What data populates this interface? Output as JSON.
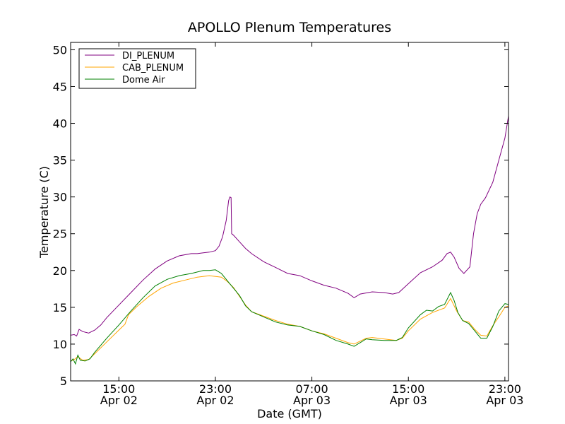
{
  "chart_data": {
    "type": "line",
    "title": "APOLLO Plenum Temperatures",
    "xlabel": "Date (GMT)",
    "ylabel": "Temperature (C)",
    "x_unit": "hours since Apr 02 11:00 GMT",
    "xlim": [
      0,
      36.3
    ],
    "ylim": [
      5,
      51
    ],
    "yticks": [
      5,
      10,
      15,
      20,
      25,
      30,
      35,
      40,
      45,
      50
    ],
    "xticks": [
      {
        "value": 4,
        "time": "15:00",
        "date": "Apr 02"
      },
      {
        "value": 12,
        "time": "23:00",
        "date": "Apr 02"
      },
      {
        "value": 20,
        "time": "07:00",
        "date": "Apr 03"
      },
      {
        "value": 28,
        "time": "15:00",
        "date": "Apr 03"
      },
      {
        "value": 36,
        "time": "23:00",
        "date": "Apr 03"
      }
    ],
    "grid": false,
    "legend_position": "top-left",
    "series": [
      {
        "name": "DI_PLENUM",
        "color": "#800080",
        "points": [
          [
            0,
            11.2
          ],
          [
            0.3,
            11.3
          ],
          [
            0.5,
            11.1
          ],
          [
            0.7,
            12
          ],
          [
            1,
            11.7
          ],
          [
            1.5,
            11.5
          ],
          [
            2,
            11.9
          ],
          [
            2.5,
            12.6
          ],
          [
            3,
            13.6
          ],
          [
            4,
            15.3
          ],
          [
            5,
            17
          ],
          [
            6,
            18.7
          ],
          [
            7,
            20.2
          ],
          [
            8,
            21.3
          ],
          [
            9,
            22
          ],
          [
            10,
            22.3
          ],
          [
            10.5,
            22.3
          ],
          [
            11,
            22.4
          ],
          [
            11.5,
            22.5
          ],
          [
            12,
            22.7
          ],
          [
            12.3,
            23.3
          ],
          [
            12.6,
            24.6
          ],
          [
            12.9,
            26.8
          ],
          [
            13.1,
            29.5
          ],
          [
            13.2,
            30
          ],
          [
            13.3,
            29.9
          ],
          [
            13.35,
            25
          ],
          [
            13.5,
            24.8
          ],
          [
            14,
            23.9
          ],
          [
            14.5,
            23
          ],
          [
            15,
            22.3
          ],
          [
            16,
            21.2
          ],
          [
            17,
            20.4
          ],
          [
            18,
            19.6
          ],
          [
            19,
            19.3
          ],
          [
            20,
            18.6
          ],
          [
            21,
            18
          ],
          [
            22,
            17.6
          ],
          [
            23,
            16.9
          ],
          [
            23.5,
            16.3
          ],
          [
            24,
            16.8
          ],
          [
            25,
            17.1
          ],
          [
            26,
            17
          ],
          [
            26.7,
            16.8
          ],
          [
            27.2,
            17
          ],
          [
            28,
            18.2
          ],
          [
            29,
            19.7
          ],
          [
            30,
            20.5
          ],
          [
            30.8,
            21.4
          ],
          [
            31.2,
            22.3
          ],
          [
            31.5,
            22.5
          ],
          [
            31.8,
            21.8
          ],
          [
            32.2,
            20.3
          ],
          [
            32.6,
            19.6
          ],
          [
            33.1,
            20.5
          ],
          [
            33.4,
            25
          ],
          [
            33.7,
            27.7
          ],
          [
            34,
            29
          ],
          [
            34.4,
            29.9
          ],
          [
            35,
            32
          ],
          [
            35.5,
            35
          ],
          [
            36,
            38
          ],
          [
            36.3,
            41
          ]
        ]
      },
      {
        "name": "CAB_PLENUM",
        "color": "#ffa500",
        "points": [
          [
            0,
            7.7
          ],
          [
            0.3,
            7.9
          ],
          [
            0.6,
            8.3
          ],
          [
            1,
            7.8
          ],
          [
            1.5,
            7.9
          ],
          [
            2,
            8.7
          ],
          [
            3,
            10.3
          ],
          [
            4,
            11.9
          ],
          [
            4.5,
            12.7
          ],
          [
            4.8,
            14
          ],
          [
            5.5,
            15.1
          ],
          [
            6.5,
            16.5
          ],
          [
            7.5,
            17.6
          ],
          [
            8.5,
            18.3
          ],
          [
            9.5,
            18.7
          ],
          [
            10.5,
            19.1
          ],
          [
            11.5,
            19.3
          ],
          [
            12.5,
            19.1
          ],
          [
            13,
            18.5
          ],
          [
            13.5,
            17.7
          ],
          [
            14,
            16.5
          ],
          [
            14.5,
            15.3
          ],
          [
            15,
            14.4
          ],
          [
            16,
            13.8
          ],
          [
            17,
            13.2
          ],
          [
            18,
            12.7
          ],
          [
            19,
            12.4
          ],
          [
            20,
            11.8
          ],
          [
            21,
            11.4
          ],
          [
            22,
            10.8
          ],
          [
            23,
            10.2
          ],
          [
            23.5,
            10
          ],
          [
            24,
            10.4
          ],
          [
            24.5,
            10.8
          ],
          [
            25,
            10.9
          ],
          [
            25.5,
            10.8
          ],
          [
            26.5,
            10.6
          ],
          [
            27,
            10.5
          ],
          [
            27.5,
            10.8
          ],
          [
            28,
            11.8
          ],
          [
            29,
            13.4
          ],
          [
            30,
            14.3
          ],
          [
            31,
            14.9
          ],
          [
            31.5,
            16.2
          ],
          [
            32,
            14.5
          ],
          [
            32.5,
            13.2
          ],
          [
            33,
            13
          ],
          [
            33.5,
            12
          ],
          [
            34,
            11.2
          ],
          [
            34.5,
            11.1
          ],
          [
            35,
            12.5
          ],
          [
            35.5,
            13.7
          ],
          [
            36,
            15
          ],
          [
            36.3,
            15.2
          ]
        ]
      },
      {
        "name": "Dome Air",
        "color": "#008000",
        "points": [
          [
            0,
            7.6
          ],
          [
            0.2,
            8
          ],
          [
            0.4,
            7.3
          ],
          [
            0.6,
            8.5
          ],
          [
            0.8,
            7.8
          ],
          [
            1.2,
            7.7
          ],
          [
            1.6,
            8
          ],
          [
            2,
            8.9
          ],
          [
            3,
            10.8
          ],
          [
            4,
            12.6
          ],
          [
            5,
            14.5
          ],
          [
            6,
            16.3
          ],
          [
            7,
            17.9
          ],
          [
            8,
            18.8
          ],
          [
            9,
            19.3
          ],
          [
            10,
            19.6
          ],
          [
            11,
            20
          ],
          [
            11.5,
            20
          ],
          [
            12,
            20.1
          ],
          [
            12.5,
            19.6
          ],
          [
            13,
            18.6
          ],
          [
            13.5,
            17.6
          ],
          [
            14,
            16.6
          ],
          [
            14.5,
            15.2
          ],
          [
            15,
            14.4
          ],
          [
            16,
            13.7
          ],
          [
            17,
            13
          ],
          [
            18,
            12.6
          ],
          [
            19,
            12.4
          ],
          [
            20,
            11.8
          ],
          [
            21,
            11.3
          ],
          [
            22,
            10.5
          ],
          [
            23,
            10
          ],
          [
            23.5,
            9.7
          ],
          [
            24,
            10.2
          ],
          [
            24.5,
            10.7
          ],
          [
            25,
            10.6
          ],
          [
            26,
            10.5
          ],
          [
            27,
            10.5
          ],
          [
            27.5,
            10.9
          ],
          [
            28,
            12.2
          ],
          [
            29,
            14
          ],
          [
            29.5,
            14.6
          ],
          [
            30,
            14.5
          ],
          [
            30.5,
            15.1
          ],
          [
            31,
            15.4
          ],
          [
            31.5,
            17
          ],
          [
            31.8,
            15.9
          ],
          [
            32.1,
            14.3
          ],
          [
            32.5,
            13.2
          ],
          [
            33,
            12.8
          ],
          [
            33.5,
            11.8
          ],
          [
            34,
            10.8
          ],
          [
            34.5,
            10.8
          ],
          [
            35,
            12.4
          ],
          [
            35.5,
            14.5
          ],
          [
            36,
            15.5
          ],
          [
            36.3,
            15.4
          ]
        ]
      }
    ]
  }
}
